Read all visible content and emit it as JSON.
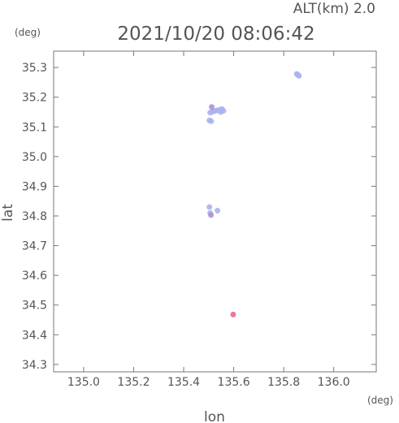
{
  "chart_data": {
    "type": "scatter",
    "title": "2021/10/20 08:06:42",
    "subtitle": "ALT(km) 2.0",
    "xlabel": "lon",
    "ylabel": "lat",
    "x_unit": "(deg)",
    "y_unit": "(deg)",
    "xlim": [
      134.88,
      136.17
    ],
    "ylim": [
      34.275,
      35.355
    ],
    "x_ticks": [
      "135.0",
      "135.2",
      "135.4",
      "135.6",
      "135.8",
      "136.0"
    ],
    "y_ticks": [
      "34.3",
      "34.4",
      "34.5",
      "34.6",
      "34.7",
      "34.8",
      "34.9",
      "35.0",
      "35.1",
      "35.2",
      "35.3"
    ],
    "grid": false,
    "colors": {
      "blue": "#aab4ee",
      "pink": "#ee6688",
      "violet": "#b090d8"
    },
    "points": [
      {
        "x": 135.857,
        "y": 35.275,
        "color": "blue"
      },
      {
        "x": 135.852,
        "y": 35.278,
        "color": "blue"
      },
      {
        "x": 135.861,
        "y": 35.272,
        "color": "blue"
      },
      {
        "x": 135.506,
        "y": 35.148,
        "color": "blue"
      },
      {
        "x": 135.514,
        "y": 35.151,
        "color": "blue"
      },
      {
        "x": 135.522,
        "y": 35.153,
        "color": "blue"
      },
      {
        "x": 135.53,
        "y": 35.155,
        "color": "blue"
      },
      {
        "x": 135.538,
        "y": 35.156,
        "color": "blue"
      },
      {
        "x": 135.546,
        "y": 35.158,
        "color": "blue"
      },
      {
        "x": 135.553,
        "y": 35.16,
        "color": "blue"
      },
      {
        "x": 135.559,
        "y": 35.154,
        "color": "blue"
      },
      {
        "x": 135.548,
        "y": 35.15,
        "color": "blue"
      },
      {
        "x": 135.512,
        "y": 35.167,
        "color": "violet"
      },
      {
        "x": 135.503,
        "y": 35.122,
        "color": "blue"
      },
      {
        "x": 135.51,
        "y": 35.119,
        "color": "blue"
      },
      {
        "x": 135.506,
        "y": 34.81,
        "color": "blue"
      },
      {
        "x": 135.509,
        "y": 34.803,
        "color": "violet"
      },
      {
        "x": 135.503,
        "y": 34.83,
        "color": "blue"
      },
      {
        "x": 135.535,
        "y": 34.818,
        "color": "blue"
      },
      {
        "x": 135.598,
        "y": 34.468,
        "color": "pink"
      }
    ]
  }
}
